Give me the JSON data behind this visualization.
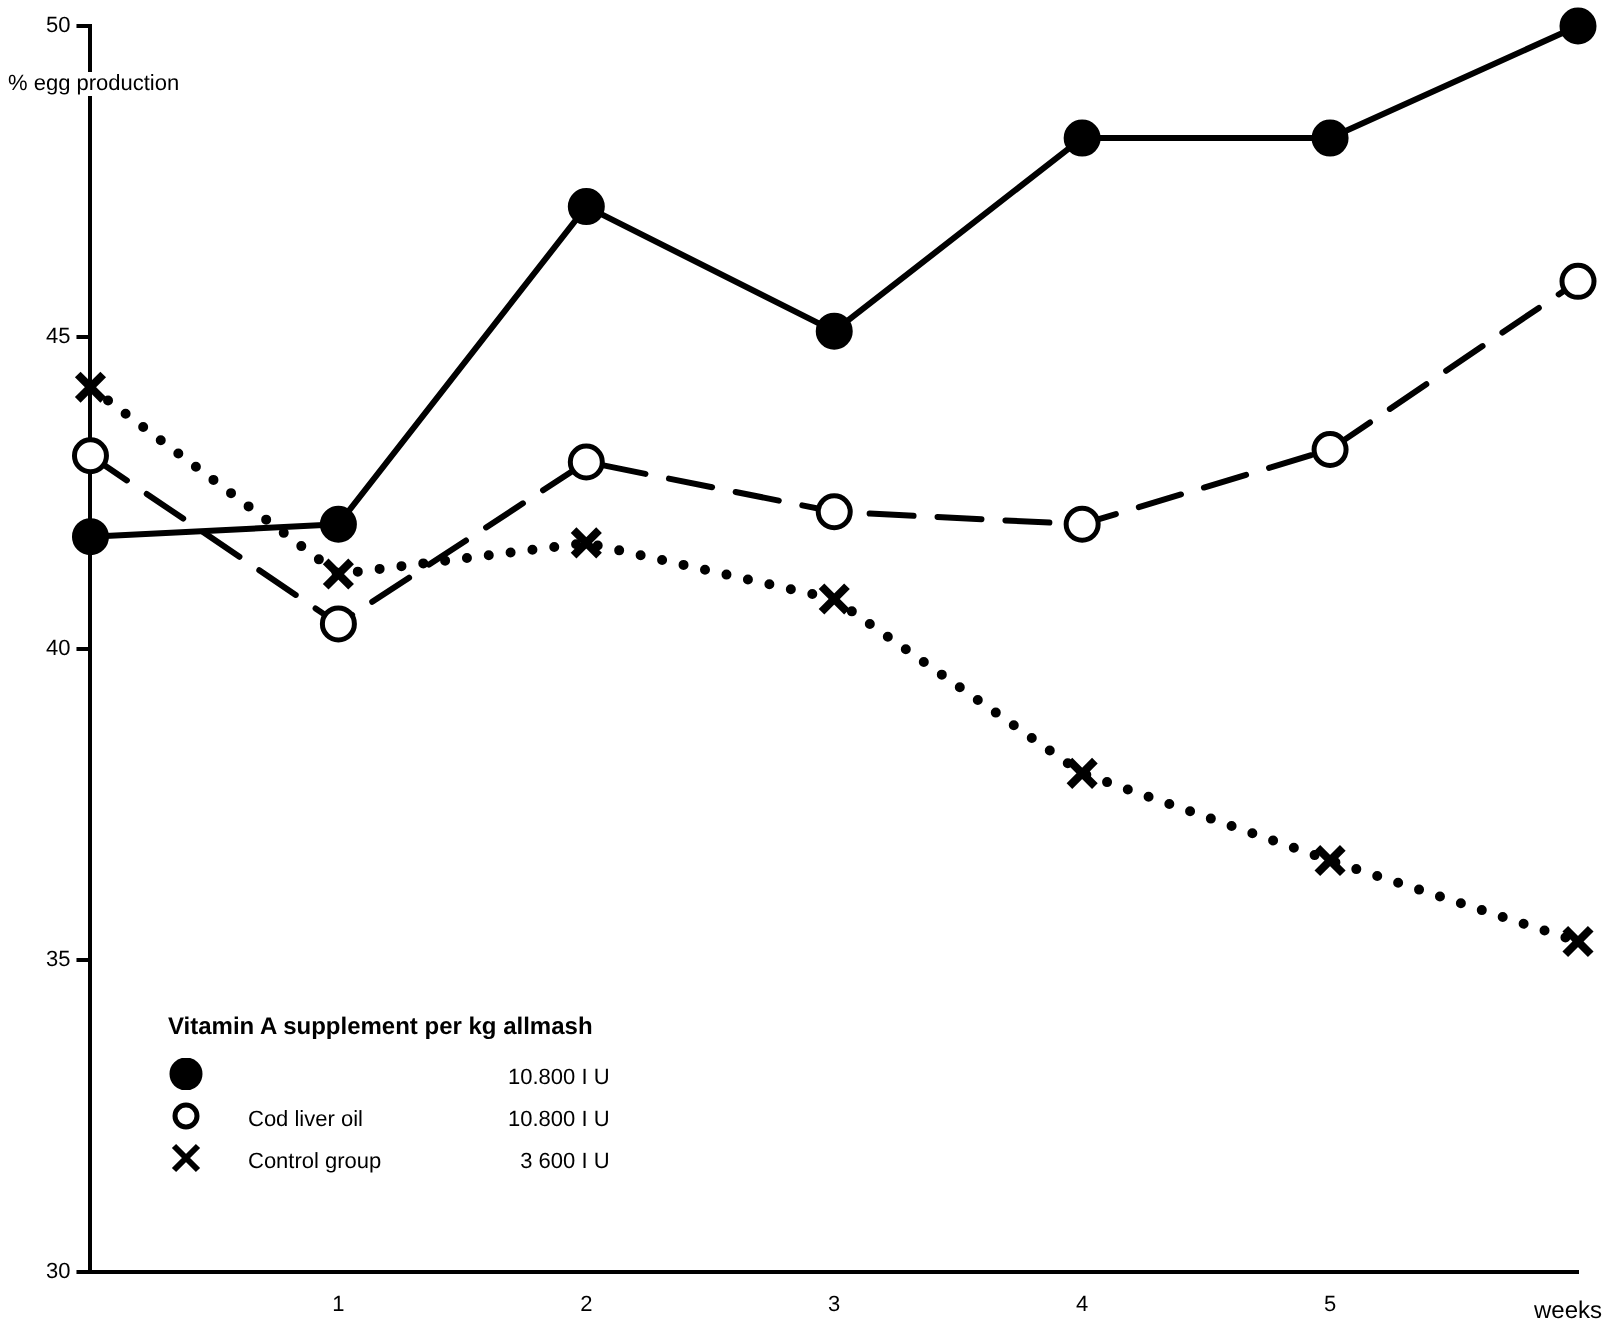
{
  "chart_data": {
    "type": "line",
    "ylabel": "% egg production",
    "xlabel": "weeks",
    "legend_title": "Vitamin A supplement per kg allmash",
    "legend": "bottom left",
    "grid": false,
    "x": [
      0,
      1,
      2,
      3,
      4,
      5,
      6
    ],
    "xlim": [
      0,
      6
    ],
    "xticks": [
      1,
      2,
      3,
      4,
      5
    ],
    "ylim": [
      30,
      50
    ],
    "yticks": [
      30,
      35,
      40,
      45,
      50
    ],
    "series": [
      {
        "color": "#000000",
        "marker": "circle",
        "line_style": "solid",
        "values": [
          41.8,
          42.0,
          47.1,
          45.1,
          48.2,
          48.2,
          50.0
        ]
      },
      {
        "name": "Cod liver oil",
        "color": "#000000",
        "marker": "circle-open",
        "line_style": "dashed",
        "values": [
          43.1,
          40.4,
          43.0,
          42.2,
          42.0,
          43.2,
          45.9
        ]
      },
      {
        "name": "Control group",
        "color": "#000000",
        "marker": "cross",
        "line_style": "dotted",
        "values": [
          44.2,
          41.2,
          41.7,
          40.8,
          38.0,
          36.6,
          35.3
        ]
      }
    ],
    "annotations": [
      "10.800 I U",
      "10.800 I U",
      "3 600 I U"
    ]
  }
}
